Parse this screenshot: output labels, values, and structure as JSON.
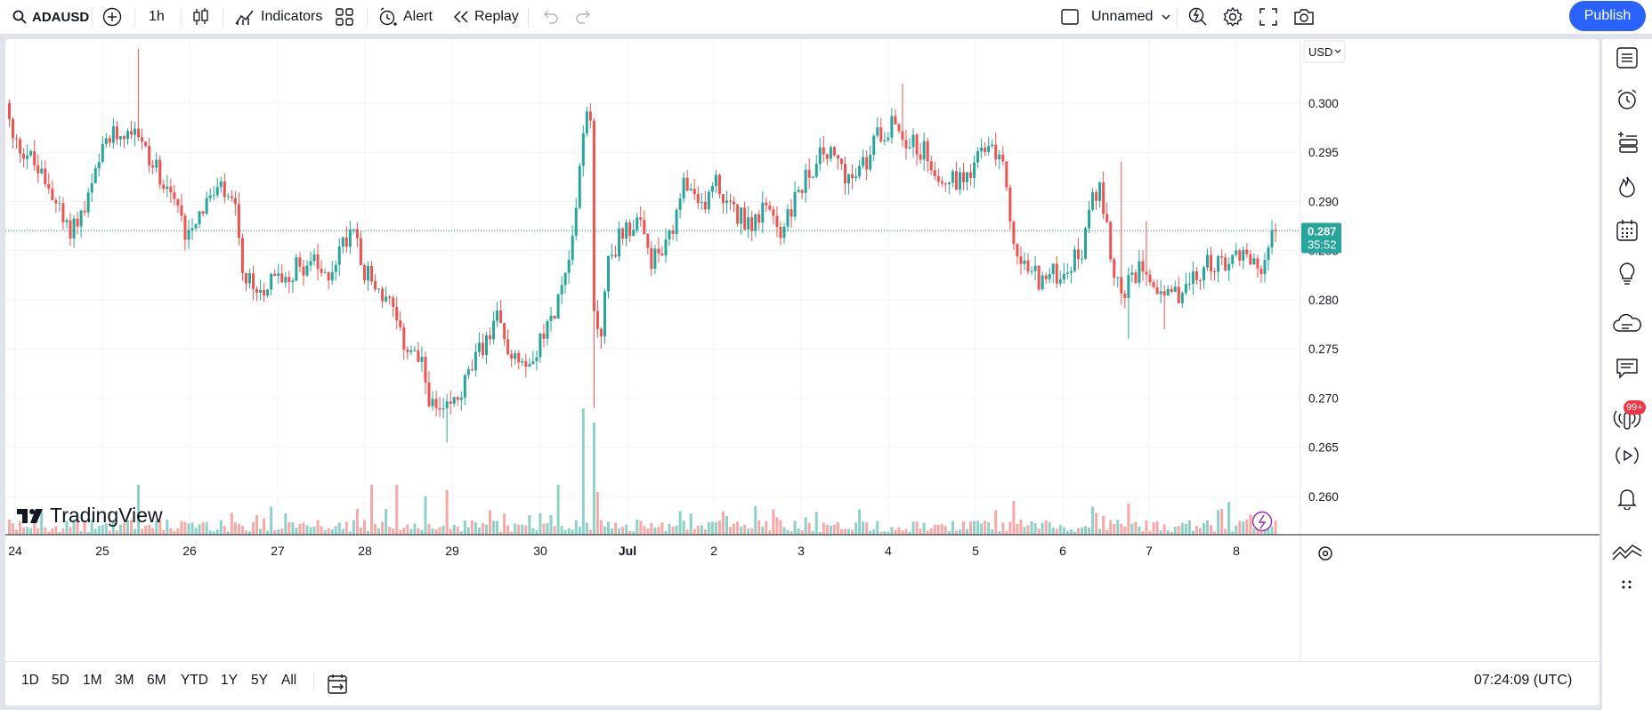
{
  "toolbar": {
    "symbol": "ADAUSD",
    "interval": "1h",
    "indicators_label": "Indicators",
    "alert_label": "Alert",
    "replay_label": "Replay",
    "layout_name": "Unnamed",
    "publish_label": "Publish"
  },
  "price_axis": {
    "currency": "USD",
    "last_price": "0.287",
    "countdown": "35:52"
  },
  "watermark": "TradingView",
  "notification_badge": "99+",
  "ranges": [
    "1D",
    "5D",
    "1M",
    "3M",
    "6M",
    "YTD",
    "1Y",
    "5Y",
    "All"
  ],
  "clock": "07:24:09 (UTC)",
  "colors": {
    "up": "#26a69a",
    "down": "#ef5350",
    "accent": "#2962ff",
    "badge": "#f23645",
    "flash": "#9c27b0"
  },
  "chart_data": {
    "type": "candlestick",
    "interval": "1h",
    "x_labels": [
      "24",
      "25",
      "26",
      "27",
      "28",
      "29",
      "30",
      "Jul",
      "2",
      "3",
      "4",
      "5",
      "6",
      "7",
      "8"
    ],
    "y_ticks": [
      0.3,
      0.295,
      0.29,
      0.285,
      0.28,
      0.275,
      0.27,
      0.265,
      0.26
    ],
    "ylim": [
      0.2561,
      0.3065
    ],
    "last_price": 0.287,
    "grid": true,
    "volume_pane": true,
    "anchors": [
      {
        "t": 0,
        "p": 0.3
      },
      {
        "t": 2,
        "p": 0.296
      },
      {
        "t": 6,
        "p": 0.295
      },
      {
        "t": 9,
        "p": 0.293
      },
      {
        "t": 13,
        "p": 0.291
      },
      {
        "t": 17,
        "p": 0.287
      },
      {
        "t": 22,
        "p": 0.289
      },
      {
        "t": 28,
        "p": 0.296
      },
      {
        "t": 36,
        "p": 0.298
      },
      {
        "t": 40,
        "p": 0.294
      },
      {
        "t": 45,
        "p": 0.292
      },
      {
        "t": 50,
        "p": 0.287
      },
      {
        "t": 56,
        "p": 0.29
      },
      {
        "t": 60,
        "p": 0.291
      },
      {
        "t": 64,
        "p": 0.289
      },
      {
        "t": 66,
        "p": 0.282
      },
      {
        "t": 70,
        "p": 0.281
      },
      {
        "t": 75,
        "p": 0.282
      },
      {
        "t": 80,
        "p": 0.283
      },
      {
        "t": 85,
        "p": 0.284
      },
      {
        "t": 89,
        "p": 0.282
      },
      {
        "t": 93,
        "p": 0.285
      },
      {
        "t": 97,
        "p": 0.288
      },
      {
        "t": 100,
        "p": 0.283
      },
      {
        "t": 104,
        "p": 0.281
      },
      {
        "t": 108,
        "p": 0.279
      },
      {
        "t": 110,
        "p": 0.276
      },
      {
        "t": 113,
        "p": 0.275
      },
      {
        "t": 116,
        "p": 0.273
      },
      {
        "t": 119,
        "p": 0.269
      },
      {
        "t": 122,
        "p": 0.268
      },
      {
        "t": 126,
        "p": 0.27
      },
      {
        "t": 130,
        "p": 0.273
      },
      {
        "t": 134,
        "p": 0.276
      },
      {
        "t": 137,
        "p": 0.278
      },
      {
        "t": 140,
        "p": 0.275
      },
      {
        "t": 145,
        "p": 0.274
      },
      {
        "t": 150,
        "p": 0.276
      },
      {
        "t": 154,
        "p": 0.28
      },
      {
        "t": 157,
        "p": 0.285
      },
      {
        "t": 159,
        "p": 0.289
      },
      {
        "t": 161,
        "p": 0.298
      },
      {
        "t": 163,
        "p": 0.298
      },
      {
        "t": 164,
        "p": 0.278
      },
      {
        "t": 166,
        "p": 0.277
      },
      {
        "t": 168,
        "p": 0.284
      },
      {
        "t": 172,
        "p": 0.287
      },
      {
        "t": 176,
        "p": 0.288
      },
      {
        "t": 180,
        "p": 0.284
      },
      {
        "t": 184,
        "p": 0.285
      },
      {
        "t": 187,
        "p": 0.288
      },
      {
        "t": 189,
        "p": 0.292
      },
      {
        "t": 193,
        "p": 0.289
      },
      {
        "t": 198,
        "p": 0.292
      },
      {
        "t": 202,
        "p": 0.289
      },
      {
        "t": 208,
        "p": 0.288
      },
      {
        "t": 212,
        "p": 0.289
      },
      {
        "t": 216,
        "p": 0.287
      },
      {
        "t": 220,
        "p": 0.29
      },
      {
        "t": 224,
        "p": 0.293
      },
      {
        "t": 228,
        "p": 0.295
      },
      {
        "t": 232,
        "p": 0.294
      },
      {
        "t": 236,
        "p": 0.292
      },
      {
        "t": 240,
        "p": 0.294
      },
      {
        "t": 243,
        "p": 0.297
      },
      {
        "t": 248,
        "p": 0.298
      },
      {
        "t": 252,
        "p": 0.296
      },
      {
        "t": 256,
        "p": 0.295
      },
      {
        "t": 260,
        "p": 0.293
      },
      {
        "t": 264,
        "p": 0.292
      },
      {
        "t": 268,
        "p": 0.293
      },
      {
        "t": 272,
        "p": 0.295
      },
      {
        "t": 276,
        "p": 0.295
      },
      {
        "t": 279,
        "p": 0.292
      },
      {
        "t": 281,
        "p": 0.285
      },
      {
        "t": 285,
        "p": 0.283
      },
      {
        "t": 289,
        "p": 0.282
      },
      {
        "t": 295,
        "p": 0.283
      },
      {
        "t": 300,
        "p": 0.285
      },
      {
        "t": 303,
        "p": 0.29
      },
      {
        "t": 305,
        "p": 0.291
      },
      {
        "t": 308,
        "p": 0.285
      },
      {
        "t": 311,
        "p": 0.28
      },
      {
        "t": 314,
        "p": 0.282
      },
      {
        "t": 317,
        "p": 0.284
      },
      {
        "t": 320,
        "p": 0.282
      },
      {
        "t": 324,
        "p": 0.28
      },
      {
        "t": 328,
        "p": 0.281
      },
      {
        "t": 332,
        "p": 0.282
      },
      {
        "t": 336,
        "p": 0.284
      },
      {
        "t": 340,
        "p": 0.283
      },
      {
        "t": 344,
        "p": 0.285
      },
      {
        "t": 348,
        "p": 0.284
      },
      {
        "t": 351,
        "p": 0.283
      },
      {
        "t": 353,
        "p": 0.287
      }
    ],
    "spikes": [
      {
        "t": 36,
        "high": 0.3055
      },
      {
        "t": 122,
        "low": 0.2655
      },
      {
        "t": 162,
        "high": 0.3
      },
      {
        "t": 163,
        "low": 0.269
      },
      {
        "t": 165,
        "low": 0.275
      },
      {
        "t": 249,
        "high": 0.302
      },
      {
        "t": 310,
        "high": 0.294
      },
      {
        "t": 312,
        "low": 0.276
      },
      {
        "t": 317,
        "high": 0.288
      },
      {
        "t": 322,
        "low": 0.277
      }
    ],
    "volume_spikes": [
      {
        "t": 36,
        "up": true,
        "h": 56
      },
      {
        "t": 101,
        "up": false,
        "h": 56
      },
      {
        "t": 108,
        "up": false,
        "h": 56
      },
      {
        "t": 116,
        "up": true,
        "h": 43
      },
      {
        "t": 122,
        "up": false,
        "h": 50
      },
      {
        "t": 153,
        "up": true,
        "h": 56
      },
      {
        "t": 160,
        "up": true,
        "h": 142
      },
      {
        "t": 163,
        "up": true,
        "h": 126
      },
      {
        "t": 164,
        "up": false,
        "h": 48
      },
      {
        "t": 208,
        "up": true,
        "h": 32
      },
      {
        "t": 280,
        "up": false,
        "h": 38
      },
      {
        "t": 312,
        "up": false,
        "h": 35
      }
    ]
  }
}
